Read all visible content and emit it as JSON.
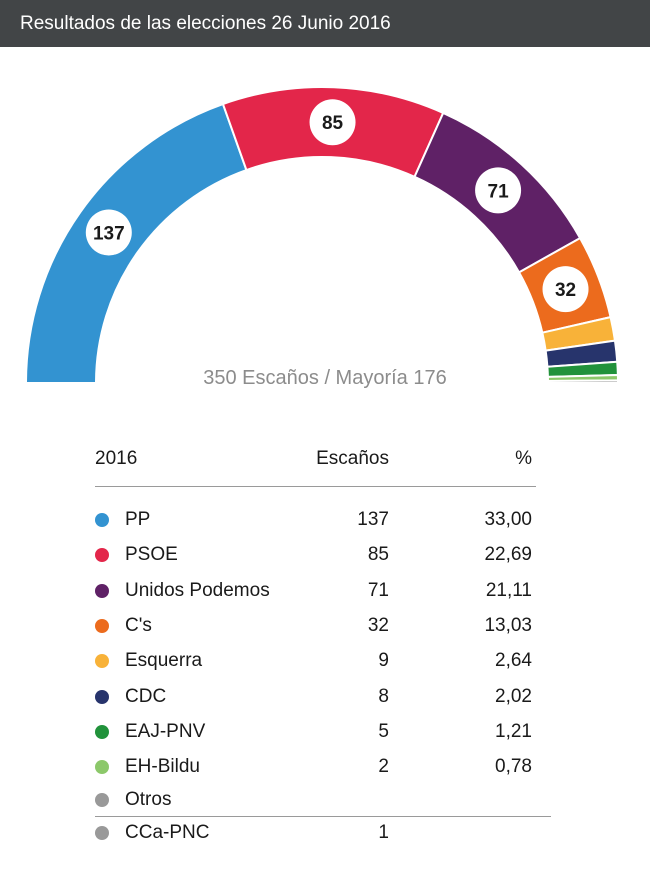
{
  "header": {
    "title": "Resultados de las elecciones 26 Junio 2016"
  },
  "chart_data": {
    "type": "hemicycle",
    "title": "Resultados de las elecciones 26 Junio 2016",
    "total_seats": 350,
    "summary": "350 Escaños / Mayoría 176",
    "series": [
      {
        "name": "PP",
        "seats": 137,
        "percent": "33,00",
        "color": "#3393d1",
        "labeled": true
      },
      {
        "name": "PSOE",
        "seats": 85,
        "percent": "22,69",
        "color": "#e3264a",
        "labeled": true
      },
      {
        "name": "Unidos Podemos",
        "seats": 71,
        "percent": "21,11",
        "color": "#5f2166",
        "labeled": true
      },
      {
        "name": "C's",
        "seats": 32,
        "percent": "13,03",
        "color": "#ec6b1d",
        "labeled": true
      },
      {
        "name": "Esquerra",
        "seats": 9,
        "percent": "2,64",
        "color": "#f8b239",
        "labeled": false
      },
      {
        "name": "CDC",
        "seats": 8,
        "percent": "2,02",
        "color": "#27346c",
        "labeled": false
      },
      {
        "name": "EAJ-PNV",
        "seats": 5,
        "percent": "1,21",
        "color": "#21923b",
        "labeled": false
      },
      {
        "name": "EH-Bildu",
        "seats": 2,
        "percent": "0,78",
        "color": "#8cc86a",
        "labeled": false
      },
      {
        "name": "CCa-PNC",
        "seats": 1,
        "percent": "",
        "color": "#999999",
        "labeled": false
      }
    ]
  },
  "table": {
    "year_header": "2016",
    "seats_header": "Escaños",
    "pct_header": "%",
    "others_group": {
      "name": "Otros",
      "color": "#999999"
    }
  }
}
